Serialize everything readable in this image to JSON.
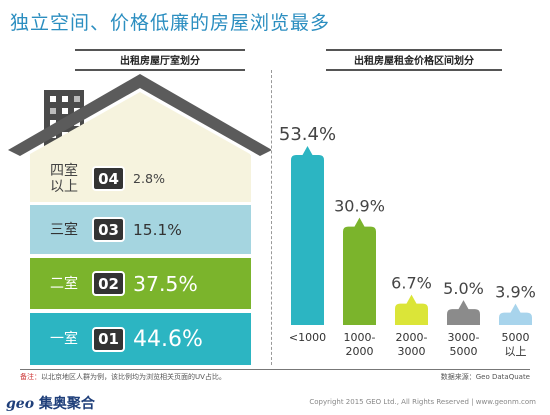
{
  "title": "独立空间、价格低廉的房屋浏览最多",
  "left_subtitle": "出租房屋厅室划分",
  "right_subtitle": "出租房屋租金价格区间划分",
  "footnote_label": "备注：",
  "footnote_text": "以北京地区人群为例，该比例均为浏览相关页面的UV占比。",
  "source": "数据来源：Geo DataQuate",
  "brand_geo": "geo",
  "brand_name": "集奥聚合",
  "copyright": "Copyright 2015 GEO Ltd., All Rights Reserved   |   www.geonm.com",
  "colors": {
    "teal": "#2cb5c2",
    "green": "#7bb42c",
    "lightblue": "#a5d5e0",
    "cream": "#f6f3de",
    "lime": "#dbe538",
    "gray": "#8b8b8b",
    "sky": "#a8d4ec",
    "title": "#2b8ec0"
  },
  "chart_data": [
    {
      "type": "bar",
      "title": "出租房屋厅室划分",
      "categories": [
        "四室以上",
        "三室",
        "二室",
        "一室"
      ],
      "badges": [
        "04",
        "03",
        "02",
        "01"
      ],
      "values": [
        2.8,
        15.1,
        37.5,
        44.6
      ],
      "value_labels": [
        "2.8%",
        "15.1%",
        "37.5%",
        "44.6%"
      ],
      "floor_labels": [
        [
          "四室",
          "以上"
        ],
        [
          "三室"
        ],
        [
          "二室"
        ],
        [
          "一室"
        ]
      ]
    },
    {
      "type": "bar",
      "title": "出租房屋租金价格区间划分",
      "categories": [
        [
          "<1000"
        ],
        [
          "1000-",
          "2000"
        ],
        [
          "2000-",
          "3000"
        ],
        [
          "3000-",
          "5000"
        ],
        [
          "5000",
          "以上"
        ]
      ],
      "values": [
        53.4,
        30.9,
        6.7,
        5.0,
        3.9
      ],
      "value_labels": [
        "53.4%",
        "30.9%",
        "6.7%",
        "5.0%",
        "3.9%"
      ]
    }
  ]
}
